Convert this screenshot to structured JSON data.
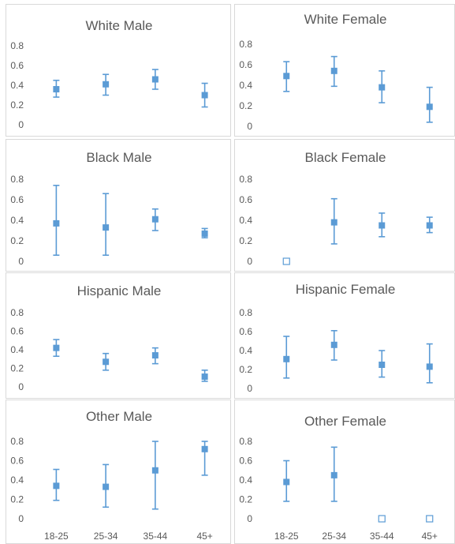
{
  "colors": {
    "marker": "#5b9bd5",
    "error_bar": "#5b9bd5",
    "text": "#595959",
    "panel_border": "#d9d9d9"
  },
  "chart_data": [
    {
      "type": "scatter",
      "title": "White Male",
      "categories": [
        "18-25",
        "25-34",
        "35-44",
        "45+"
      ],
      "y_ticks": [
        "0",
        "0.2",
        "0.4",
        "0.6",
        "0.8"
      ],
      "show_x_tick_labels": false,
      "ylim": [
        0,
        0.8
      ],
      "grid": false,
      "series": [
        {
          "values": [
            0.36,
            0.41,
            0.46,
            0.3
          ],
          "lower": [
            0.28,
            0.3,
            0.36,
            0.18
          ],
          "upper": [
            0.45,
            0.51,
            0.56,
            0.42
          ],
          "marker": [
            "filled",
            "filled",
            "filled",
            "filled"
          ]
        }
      ]
    },
    {
      "type": "scatter",
      "title": "White Female",
      "categories": [
        "18-25",
        "25-34",
        "35-44",
        "45+"
      ],
      "y_ticks": [
        "0",
        "0.2",
        "0.4",
        "0.6",
        "0.8"
      ],
      "show_x_tick_labels": false,
      "ylim": [
        0,
        0.8
      ],
      "grid": false,
      "series": [
        {
          "values": [
            0.49,
            0.54,
            0.38,
            0.19
          ],
          "lower": [
            0.34,
            0.39,
            0.23,
            0.04
          ],
          "upper": [
            0.63,
            0.68,
            0.54,
            0.38
          ],
          "marker": [
            "filled",
            "filled",
            "filled",
            "filled"
          ]
        }
      ]
    },
    {
      "type": "scatter",
      "title": "Black Male",
      "categories": [
        "18-25",
        "25-34",
        "35-44",
        "45+"
      ],
      "y_ticks": [
        "0",
        "0.2",
        "0.4",
        "0.6",
        "0.8"
      ],
      "show_x_tick_labels": false,
      "ylim": [
        0,
        0.8
      ],
      "grid": false,
      "series": [
        {
          "values": [
            0.37,
            0.33,
            0.41,
            0.27
          ],
          "lower": [
            0.06,
            0.06,
            0.3,
            0.23
          ],
          "upper": [
            0.74,
            0.66,
            0.51,
            0.32
          ],
          "marker": [
            "filled",
            "filled",
            "filled",
            "filled"
          ]
        }
      ]
    },
    {
      "type": "scatter",
      "title": "Black Female",
      "categories": [
        "18-25",
        "25-34",
        "35-44",
        "45+"
      ],
      "y_ticks": [
        "0",
        "0.2",
        "0.4",
        "0.6",
        "0.8"
      ],
      "show_x_tick_labels": false,
      "ylim": [
        0,
        0.8
      ],
      "grid": false,
      "series": [
        {
          "values": [
            0,
            0.38,
            0.35,
            0.35
          ],
          "lower": [
            null,
            0.17,
            0.24,
            0.28
          ],
          "upper": [
            null,
            0.61,
            0.47,
            0.43
          ],
          "marker": [
            "hollow",
            "filled",
            "filled",
            "filled"
          ]
        }
      ]
    },
    {
      "type": "scatter",
      "title": "Hispanic Male",
      "categories": [
        "18-25",
        "25-34",
        "35-44",
        "45+"
      ],
      "y_ticks": [
        "0",
        "0.2",
        "0.4",
        "0.6",
        "0.8"
      ],
      "show_x_tick_labels": false,
      "ylim": [
        0,
        0.8
      ],
      "grid": false,
      "series": [
        {
          "values": [
            0.42,
            0.27,
            0.34,
            0.11
          ],
          "lower": [
            0.33,
            0.18,
            0.25,
            0.06
          ],
          "upper": [
            0.51,
            0.36,
            0.42,
            0.18
          ],
          "marker": [
            "filled",
            "filled",
            "filled",
            "filled"
          ]
        }
      ]
    },
    {
      "type": "scatter",
      "title": "Hispanic Female",
      "categories": [
        "18-25",
        "25-34",
        "35-44",
        "45+"
      ],
      "y_ticks": [
        "0",
        "0.2",
        "0.4",
        "0.6",
        "0.8"
      ],
      "show_x_tick_labels": false,
      "ylim": [
        0,
        0.8
      ],
      "grid": false,
      "series": [
        {
          "values": [
            0.31,
            0.46,
            0.25,
            0.23
          ],
          "lower": [
            0.11,
            0.3,
            0.12,
            0.06
          ],
          "upper": [
            0.55,
            0.61,
            0.4,
            0.47
          ],
          "marker": [
            "filled",
            "filled",
            "filled",
            "filled"
          ]
        }
      ]
    },
    {
      "type": "scatter",
      "title": "Other Male",
      "categories": [
        "18-25",
        "25-34",
        "35-44",
        "45+"
      ],
      "y_ticks": [
        "0",
        "0.2",
        "0.4",
        "0.6",
        "0.8"
      ],
      "show_x_tick_labels": true,
      "ylim": [
        0,
        0.8
      ],
      "grid": false,
      "series": [
        {
          "values": [
            0.34,
            0.33,
            0.5,
            0.72
          ],
          "lower": [
            0.19,
            0.12,
            0.1,
            0.45
          ],
          "upper": [
            0.51,
            0.56,
            0.8,
            0.8
          ],
          "marker": [
            "filled",
            "filled",
            "filled",
            "filled"
          ]
        }
      ]
    },
    {
      "type": "scatter",
      "title": "Other Female",
      "categories": [
        "18-25",
        "25-34",
        "35-44",
        "45+"
      ],
      "y_ticks": [
        "0",
        "0.2",
        "0.4",
        "0.6",
        "0.8"
      ],
      "show_x_tick_labels": true,
      "ylim": [
        0,
        0.8
      ],
      "grid": false,
      "series": [
        {
          "values": [
            0.38,
            0.45,
            0,
            0
          ],
          "lower": [
            0.18,
            0.18,
            null,
            null
          ],
          "upper": [
            0.6,
            0.74,
            null,
            null
          ],
          "marker": [
            "filled",
            "filled",
            "hollow",
            "hollow"
          ]
        }
      ]
    }
  ]
}
